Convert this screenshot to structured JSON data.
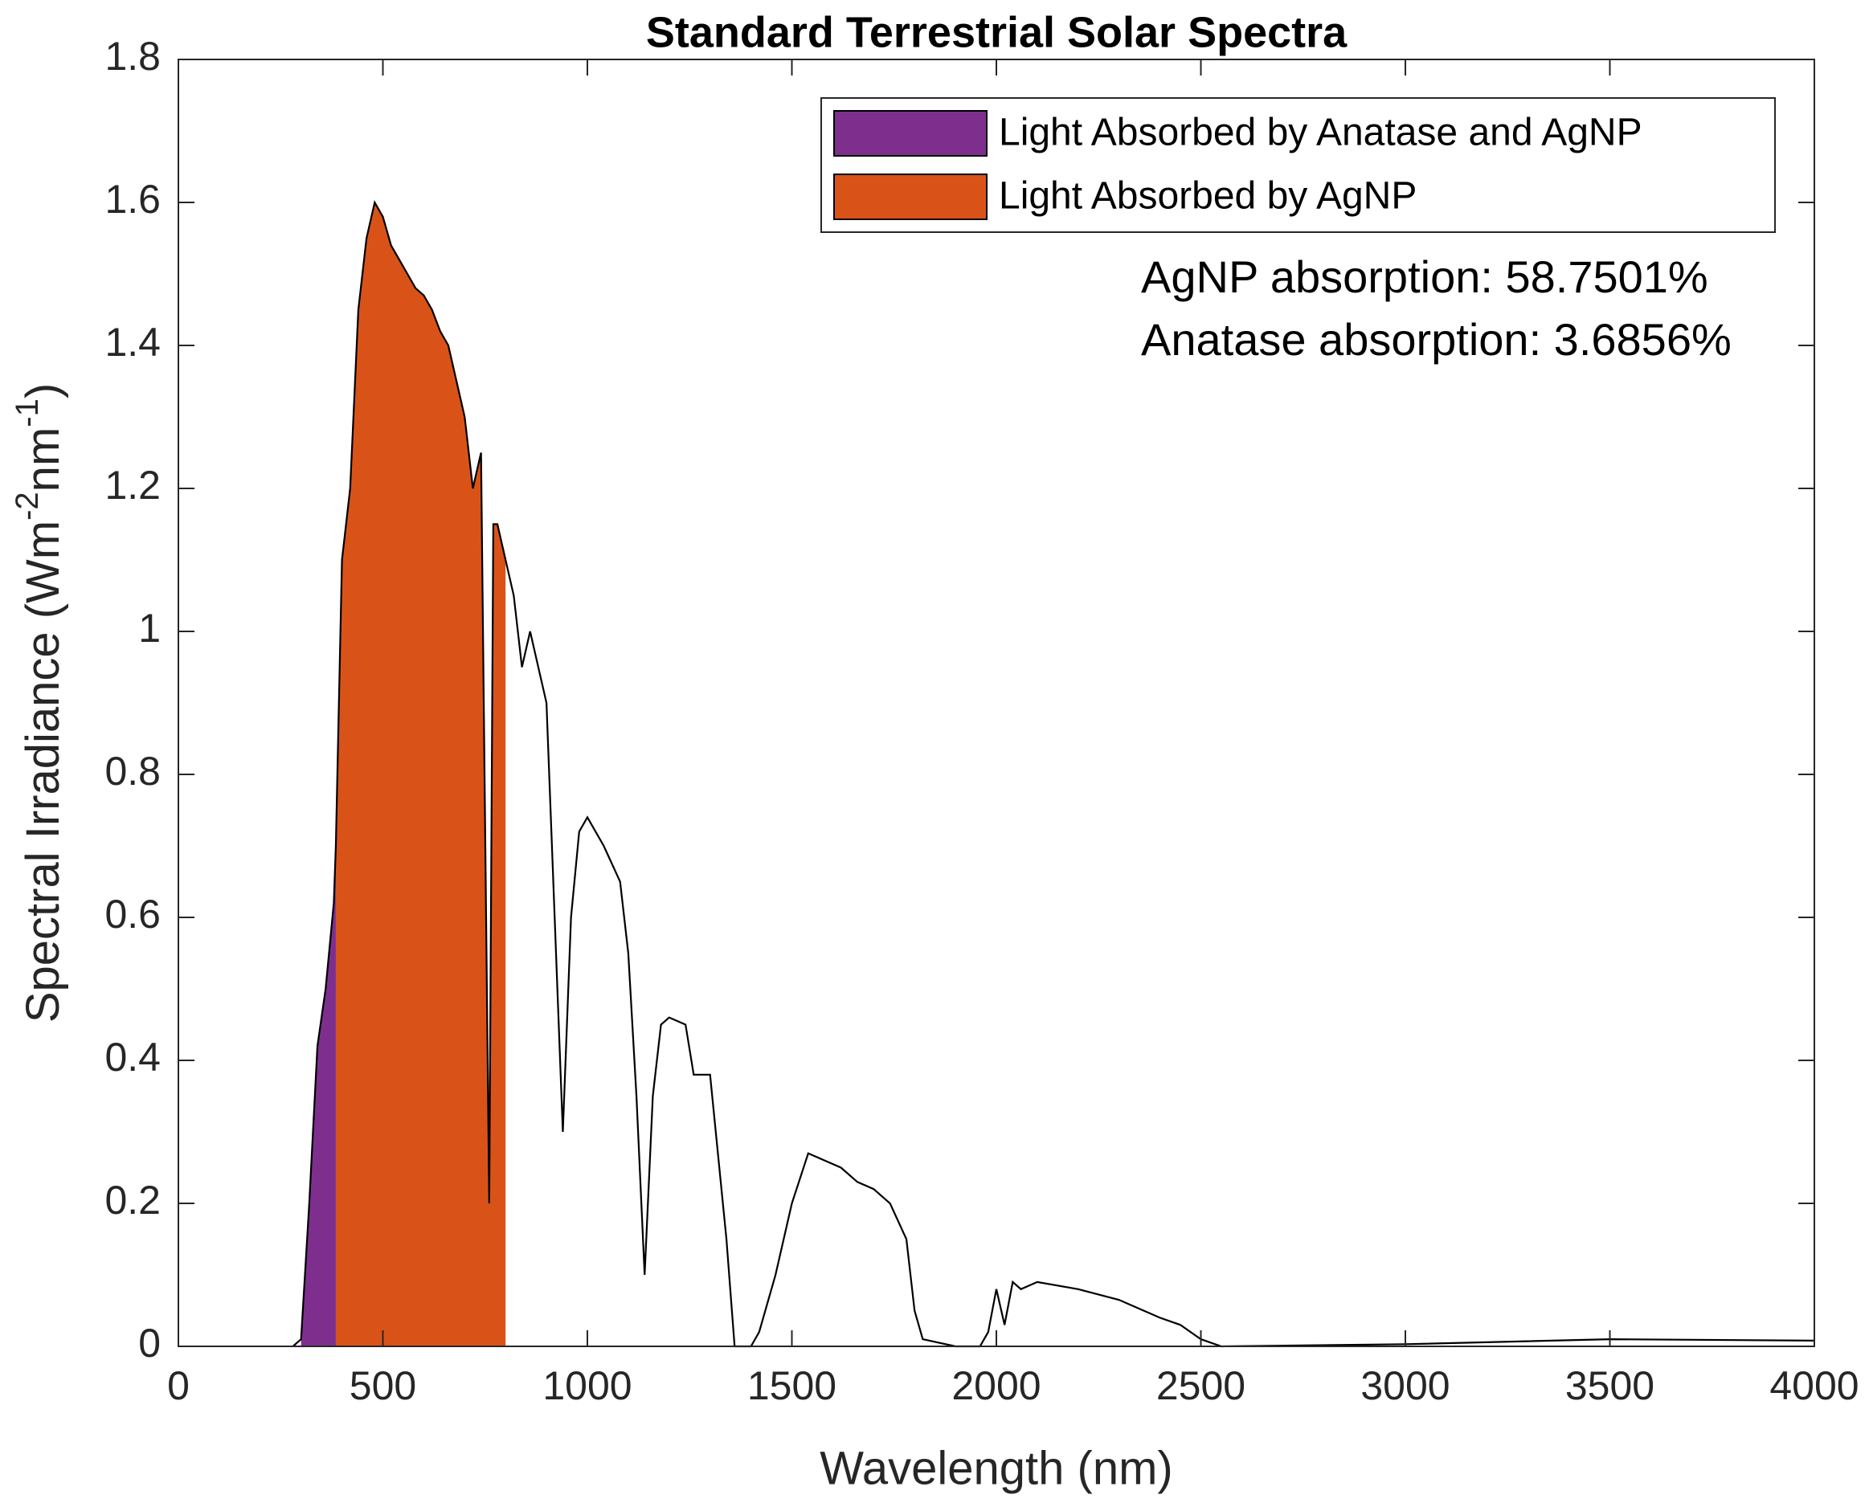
{
  "chart_data": {
    "type": "line",
    "title": "Standard Terrestrial Solar Spectra",
    "xlabel": "Wavelength (nm)",
    "ylabel_parts": [
      "Spectral Irradiance (Wm",
      "-2",
      "nm",
      "-1",
      ")"
    ],
    "annotations": [
      "AgNP absorption: 58.7501%",
      "Anatase absorption: 3.6856%"
    ],
    "xlim": [
      0,
      4000
    ],
    "xticks": [
      0,
      500,
      1000,
      1500,
      2000,
      2500,
      3000,
      3500,
      4000
    ],
    "ylim": [
      0,
      1.8
    ],
    "yticks": [
      0,
      0.2,
      0.4,
      0.6,
      0.8,
      1,
      1.2,
      1.4,
      1.6,
      1.8
    ],
    "legend": "upper right",
    "areas": [
      {
        "name": "Light Absorbed by Anatase and AgNP",
        "color": "#7e2f8e",
        "x": [
          300,
          320,
          340,
          360,
          380,
          385
        ],
        "values": [
          0.01,
          0.2,
          0.42,
          0.5,
          0.62,
          0.7
        ]
      },
      {
        "name": "Light Absorbed by AgNP",
        "color": "#d95319",
        "x": [
          385,
          400,
          420,
          440,
          460,
          480,
          500,
          520,
          540,
          560,
          580,
          600,
          620,
          640,
          660,
          680,
          700,
          720,
          740,
          760,
          770,
          780,
          800
        ],
        "values": [
          0.7,
          1.1,
          1.2,
          1.45,
          1.55,
          1.6,
          1.58,
          1.54,
          1.52,
          1.5,
          1.48,
          1.47,
          1.45,
          1.42,
          1.4,
          1.35,
          1.3,
          1.2,
          1.25,
          0.2,
          1.15,
          1.15,
          1.1
        ]
      }
    ],
    "x": [
      280,
      300,
      320,
      340,
      360,
      380,
      385,
      400,
      420,
      440,
      460,
      480,
      500,
      520,
      540,
      560,
      580,
      600,
      620,
      640,
      660,
      680,
      700,
      720,
      740,
      760,
      770,
      780,
      800,
      820,
      840,
      860,
      880,
      900,
      920,
      940,
      960,
      980,
      1000,
      1040,
      1080,
      1100,
      1120,
      1140,
      1160,
      1180,
      1200,
      1240,
      1260,
      1300,
      1340,
      1360,
      1400,
      1420,
      1460,
      1500,
      1540,
      1580,
      1620,
      1660,
      1700,
      1740,
      1780,
      1800,
      1820,
      1900,
      1960,
      1980,
      2000,
      2020,
      2040,
      2060,
      2100,
      2200,
      2300,
      2400,
      2450,
      2500,
      2550,
      3000,
      3500,
      4000
    ],
    "series": [
      {
        "color": "#000000",
        "values": [
          0,
          0.01,
          0.2,
          0.42,
          0.5,
          0.62,
          0.7,
          1.1,
          1.2,
          1.45,
          1.55,
          1.6,
          1.58,
          1.54,
          1.52,
          1.5,
          1.48,
          1.47,
          1.45,
          1.42,
          1.4,
          1.35,
          1.3,
          1.2,
          1.25,
          0.2,
          1.15,
          1.15,
          1.1,
          1.05,
          0.95,
          1.0,
          0.95,
          0.9,
          0.6,
          0.3,
          0.6,
          0.72,
          0.74,
          0.7,
          0.65,
          0.55,
          0.35,
          0.1,
          0.35,
          0.45,
          0.46,
          0.45,
          0.38,
          0.38,
          0.15,
          0,
          0,
          0.02,
          0.1,
          0.2,
          0.27,
          0.26,
          0.25,
          0.23,
          0.22,
          0.2,
          0.15,
          0.05,
          0.01,
          0,
          0,
          0.02,
          0.08,
          0.03,
          0.09,
          0.08,
          0.09,
          0.08,
          0.065,
          0.04,
          0.03,
          0.01,
          0,
          0.003,
          0.01,
          0.008
        ]
      }
    ]
  }
}
